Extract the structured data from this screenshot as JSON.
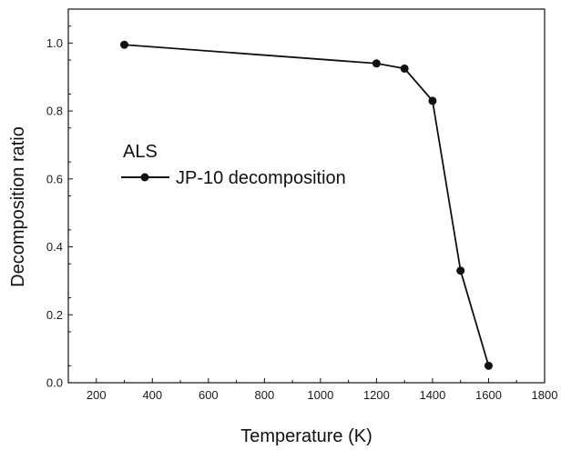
{
  "chart_data": {
    "type": "line",
    "xlabel": "Temperature (K)",
    "ylabel": "Decomposition ratio",
    "xlim": [
      100,
      1800
    ],
    "ylim": [
      0.0,
      1.1
    ],
    "xticks": [
      200,
      400,
      600,
      800,
      1000,
      1200,
      1400,
      1600,
      1800
    ],
    "xtick_labels": [
      "200",
      "400",
      "600",
      "800",
      "1000",
      "1200",
      "1400",
      "1600",
      "1800"
    ],
    "yticks": [
      0.0,
      0.2,
      0.4,
      0.6,
      0.8,
      1.0
    ],
    "ytick_labels": [
      "0.0",
      "0.2",
      "0.4",
      "0.6",
      "0.8",
      "1.0"
    ],
    "grid": false,
    "legend": {
      "title": "ALS",
      "placement": "left-middle",
      "entries": [
        "JP-10 decomposition"
      ]
    },
    "series": [
      {
        "name": "JP-10 decomposition",
        "color": "#111111",
        "marker": "circle",
        "x": [
          300,
          1200,
          1300,
          1400,
          1500,
          1600
        ],
        "y": [
          0.995,
          0.94,
          0.925,
          0.83,
          0.33,
          0.05
        ]
      }
    ]
  }
}
